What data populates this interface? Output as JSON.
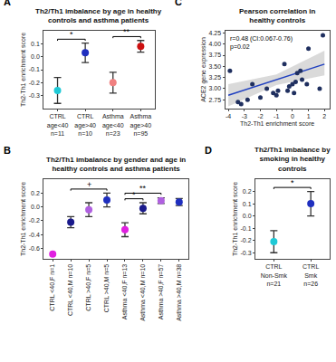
{
  "chart_data": [
    {
      "type": "errorbar",
      "label": "A",
      "title": "Th2/Th1 imbalance by age in healthy controls and asthma patients",
      "y_label": "Th2-Th1 enrichment score",
      "categories": [
        "CTRL age<40 n=11",
        "CTRL age>40 n=10",
        "Asthma age<40 n=23",
        "Asthma age>40 n=95"
      ],
      "values": [
        -0.26,
        0.03,
        -0.2,
        0.08
      ],
      "errors": [
        0.1,
        0.075,
        0.08,
        0.045
      ],
      "colors": [
        "#1fc9d6",
        "#1f2fbf",
        "#f08080",
        "#cc1010"
      ],
      "ylim": [
        -0.4,
        0.2
      ],
      "yticks": [
        -0.3,
        -0.2,
        -0.1,
        {
          "value": 0,
          "label": "0.0"
        },
        0.1
      ],
      "brackets": [
        {
          "between": [
            0,
            1
          ],
          "label": "*"
        },
        {
          "between": [
            2,
            3
          ],
          "label": "**"
        }
      ]
    },
    {
      "type": "errorbar",
      "label": "B",
      "title": "Th2/Th1 imbalance by gender and age in healthy controls and asthma patients",
      "y_label": "Th2-Th1 enrichment score",
      "categories": [
        "CTRL <40,F n=1",
        "CTRL <40,M n=10",
        "CTRL >40,F n=5",
        "CTRL >40,M n=5",
        "Asthma <40,F n=13",
        "Asthma <40,M n=10",
        "Asthma >40,F n=57",
        "Asthma >40,M n=38"
      ],
      "values": [
        -0.68,
        -0.22,
        -0.04,
        0.1,
        -0.33,
        -0.02,
        0.09,
        0.07
      ],
      "errors": [
        null,
        0.08,
        0.1,
        0.1,
        0.1,
        0.08,
        0.04,
        0.05
      ],
      "colors": [
        "#e020e0",
        "#1a1a8c",
        "#b060e0",
        "#1f2fbf",
        "#e020e0",
        "#1a1a8c",
        "#b060e0",
        "#1f2fbf"
      ],
      "ylim": [
        -0.75,
        0.4
      ],
      "yticks": [
        -0.6,
        -0.4,
        -0.2,
        {
          "value": 0,
          "label": "0.0"
        },
        0.2
      ],
      "brackets": [
        {
          "between": [
            1,
            3
          ],
          "label": "+"
        },
        {
          "between": [
            4,
            5
          ],
          "label": "*"
        },
        {
          "between": [
            4,
            6
          ],
          "label": "**"
        }
      ]
    },
    {
      "type": "scatter",
      "label": "C",
      "title": "Pearson correlation in healthy controls",
      "x_label": "Th2-Th1 enrichment score",
      "y_label": "ACE2 gene expression",
      "annotation": [
        "r=0.48 (CI:0.067-0.76)",
        "p=0.02"
      ],
      "x": [
        -3.9,
        -3.4,
        -3.2,
        -2.8,
        -2.5,
        -2.0,
        -1.6,
        -1.2,
        -1.0,
        -0.9,
        -0.5,
        -0.3,
        -0.2,
        0.0,
        0.1,
        0.2,
        0.3,
        0.5,
        0.6,
        0.9,
        1.0,
        1.7,
        1.9
      ],
      "y": [
        3.4,
        2.7,
        2.65,
        2.75,
        3.1,
        2.8,
        3.0,
        2.9,
        2.85,
        2.95,
        3.55,
        2.95,
        3.05,
        3.1,
        2.9,
        3.15,
        3.35,
        3.4,
        3.2,
        3.1,
        3.9,
        3.0,
        4.2
      ],
      "color": "#1f2f5f",
      "fit": {
        "x": [
          -4,
          -1,
          2
        ],
        "y": [
          2.85,
          3.2,
          3.55
        ],
        "lower": [
          2.6,
          3.08,
          3.3
        ],
        "upper": [
          3.1,
          3.32,
          3.85
        ],
        "color": "#2040c0"
      },
      "xlim": [
        -4.2,
        2.3
      ],
      "ylim": [
        2.55,
        4.3
      ],
      "xticks": [
        -4,
        -3,
        -2,
        -1,
        0,
        1,
        2
      ],
      "yticks": [
        {
          "value": 2.75,
          "label": "2.75"
        },
        {
          "value": 3,
          "label": "3.00"
        },
        {
          "value": 3.25,
          "label": "3.25"
        },
        {
          "value": 3.5,
          "label": "3.50"
        },
        {
          "value": 3.75,
          "label": "3.75"
        },
        {
          "value": 4,
          "label": "4.00"
        },
        {
          "value": 4.25,
          "label": "4.25"
        }
      ]
    },
    {
      "type": "errorbar",
      "label": "D",
      "title": "Th2/Th1 imbalance by smoking in healthy controls",
      "y_label": "Th2-Th1 enrichment score",
      "categories": [
        "CTRL Non-Smk n=21",
        "CTRL Smk n=26"
      ],
      "values": [
        -0.21,
        0.1
      ],
      "errors": [
        0.09,
        0.1
      ],
      "colors": [
        "#1fc9d6",
        "#1f2fbf"
      ],
      "ylim": [
        -0.35,
        0.3
      ],
      "yticks": [
        -0.3,
        -0.2,
        -0.1,
        {
          "value": 0,
          "label": "0.0"
        },
        0.1,
        0.2
      ],
      "brackets": [
        {
          "between": [
            0,
            1
          ],
          "label": "*"
        }
      ]
    }
  ]
}
